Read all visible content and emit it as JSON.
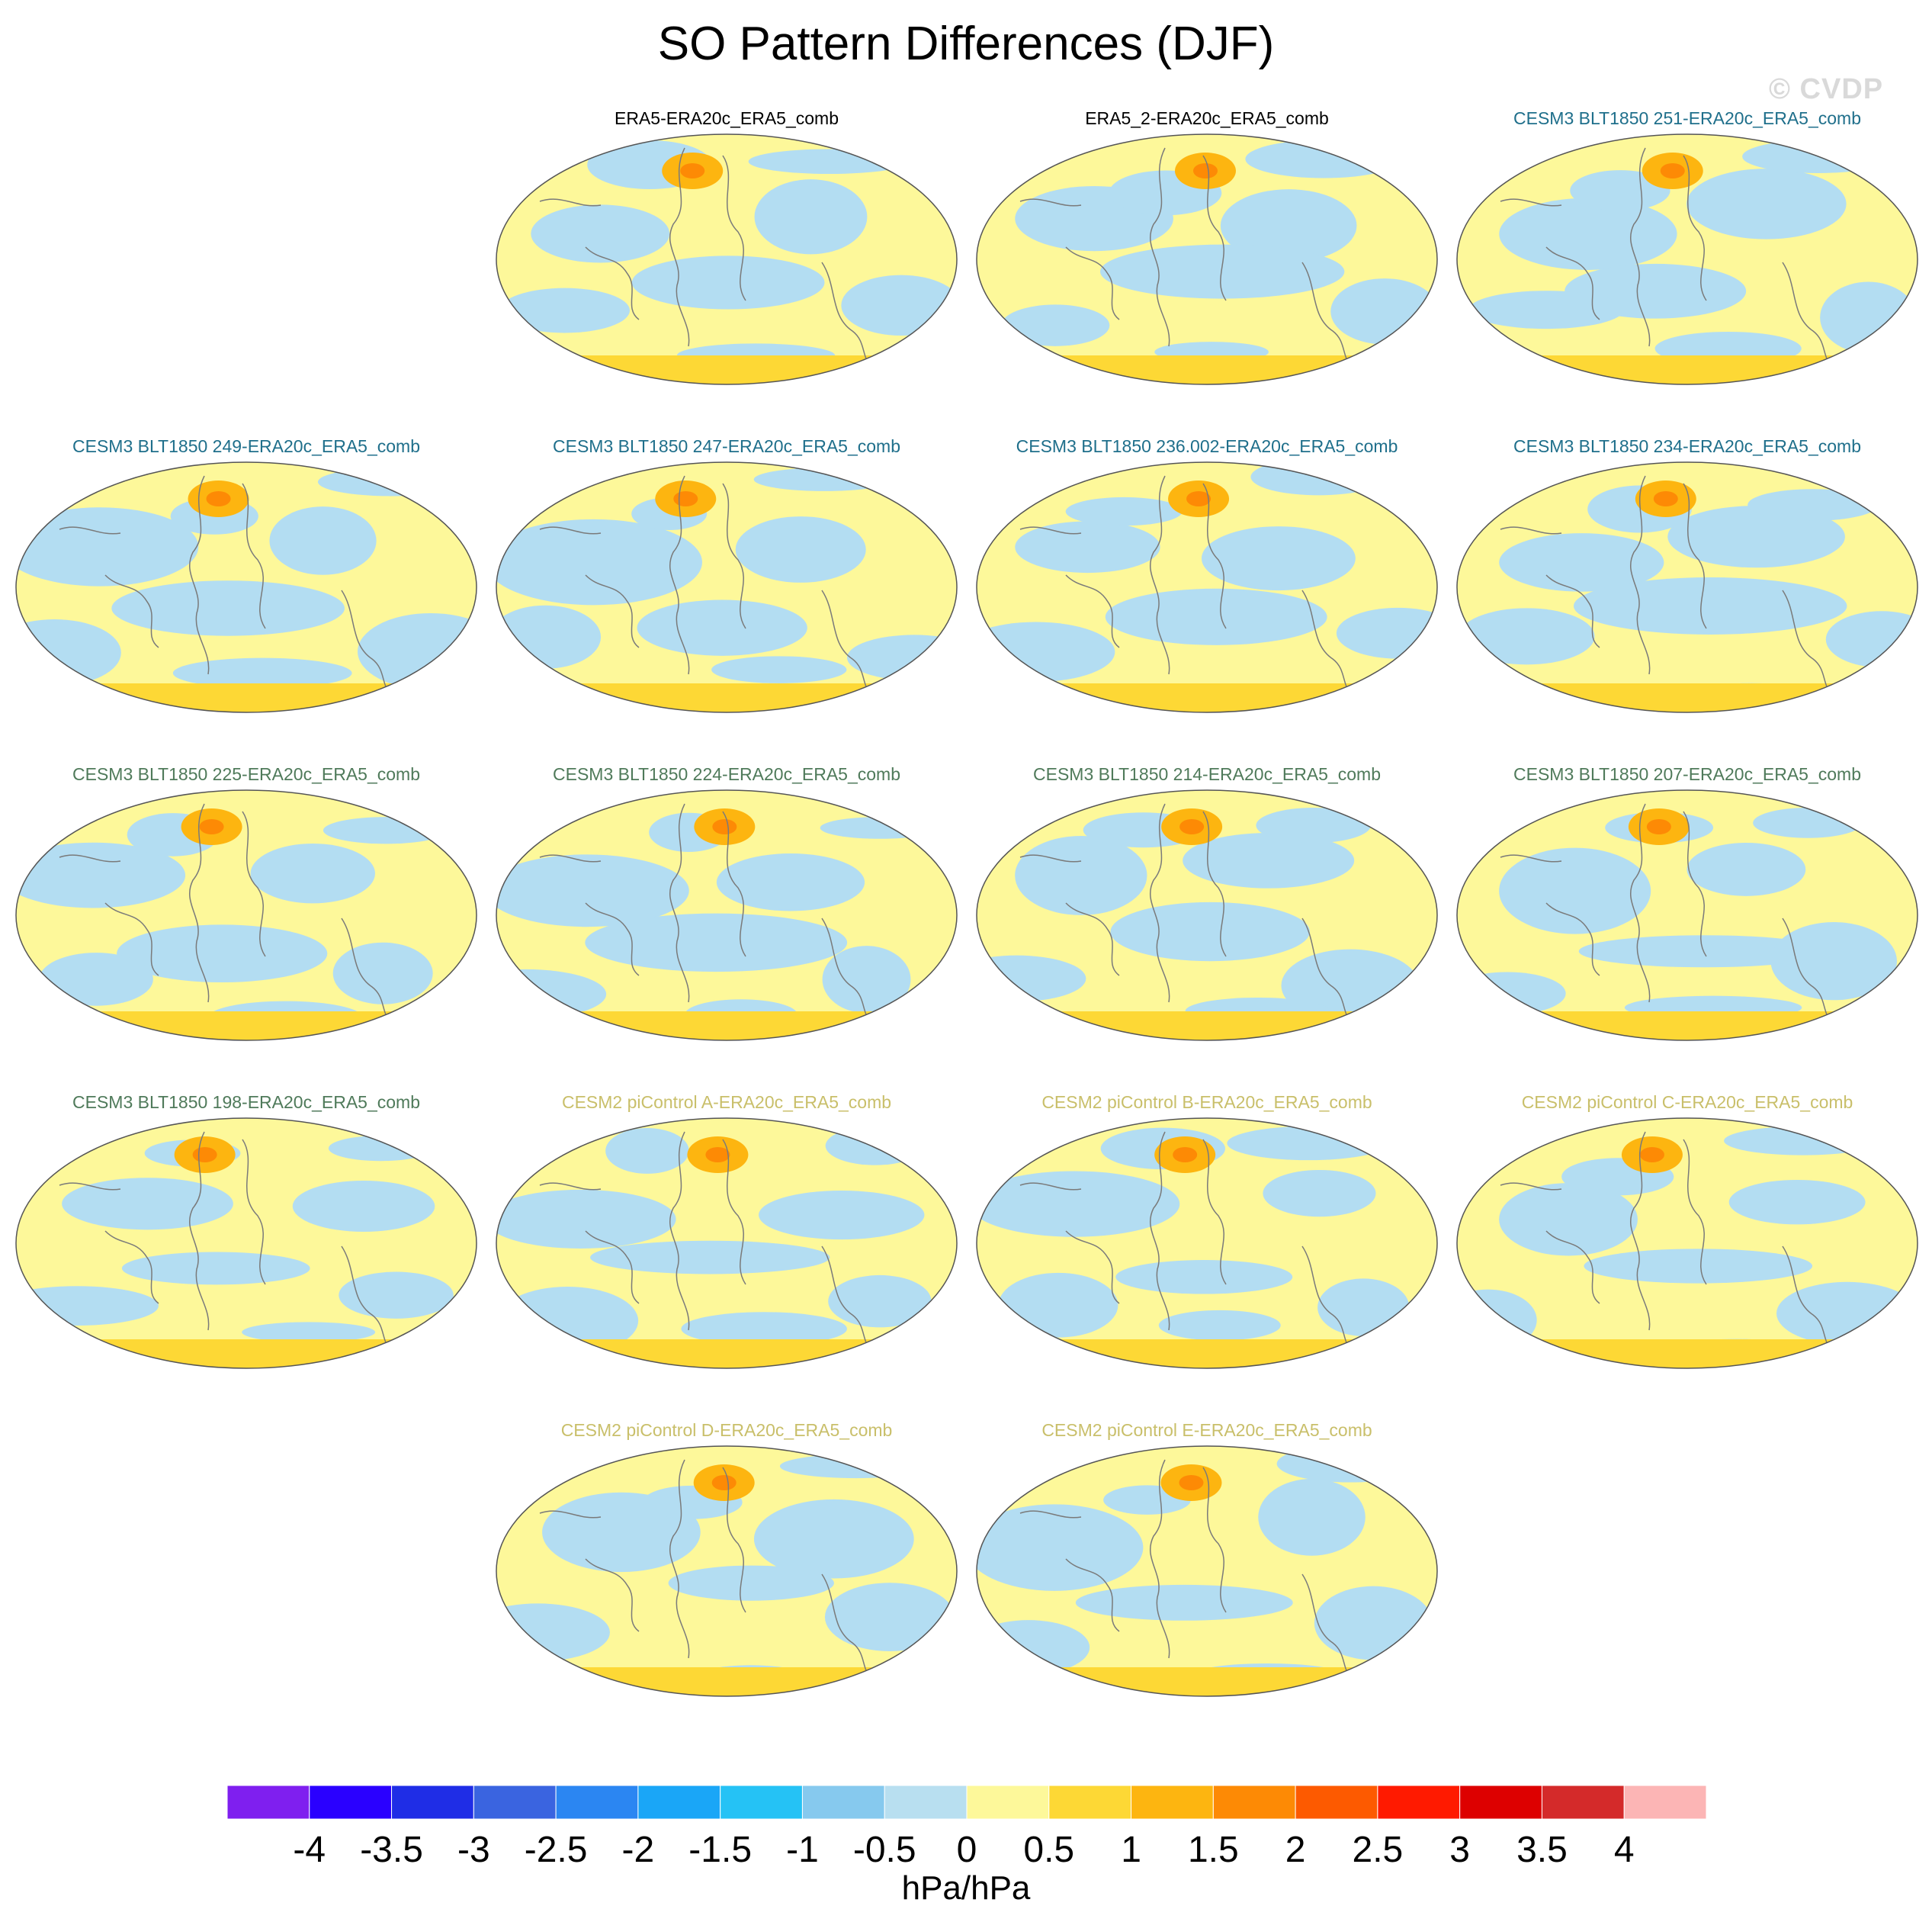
{
  "title": "SO Pattern Differences (DJF)",
  "watermark": "© CVDP",
  "watermark_color": "#d9d9d9",
  "colors": {
    "obs_label": "#000000",
    "cesm3_251_label": "#1f6f8b",
    "cesm3_label": "#4f7a5a",
    "cesm2_label": "#c9bf6a",
    "ocean_neg": "#b3ddf2",
    "ocean_pos": "#fdf89a",
    "coast": "#7a7a7a"
  },
  "panels": [
    {
      "label": "ERA5-ERA20c_ERA5_comb",
      "color_key": "obs_label"
    },
    {
      "label": "ERA5_2-ERA20c_ERA5_comb",
      "color_key": "obs_label"
    },
    {
      "label": "CESM3 BLT1850 251-ERA20c_ERA5_comb",
      "color_key": "cesm3_251_label"
    },
    {
      "label": "CESM3 BLT1850 249-ERA20c_ERA5_comb",
      "color_key": "cesm3_251_label"
    },
    {
      "label": "CESM3 BLT1850 247-ERA20c_ERA5_comb",
      "color_key": "cesm3_251_label"
    },
    {
      "label": "CESM3 BLT1850 236.002-ERA20c_ERA5_comb",
      "color_key": "cesm3_251_label"
    },
    {
      "label": "CESM3 BLT1850 234-ERA20c_ERA5_comb",
      "color_key": "cesm3_251_label"
    },
    {
      "label": "CESM3 BLT1850 225-ERA20c_ERA5_comb",
      "color_key": "cesm3_label"
    },
    {
      "label": "CESM3 BLT1850 224-ERA20c_ERA5_comb",
      "color_key": "cesm3_label"
    },
    {
      "label": "CESM3 BLT1850 214-ERA20c_ERA5_comb",
      "color_key": "cesm3_label"
    },
    {
      "label": "CESM3 BLT1850 207-ERA20c_ERA5_comb",
      "color_key": "cesm3_label"
    },
    {
      "label": "CESM3 BLT1850 198-ERA20c_ERA5_comb",
      "color_key": "cesm3_label"
    },
    {
      "label": "CESM2 piControl A-ERA20c_ERA5_comb",
      "color_key": "cesm2_label"
    },
    {
      "label": "CESM2 piControl B-ERA20c_ERA5_comb",
      "color_key": "cesm2_label"
    },
    {
      "label": "CESM2 piControl C-ERA20c_ERA5_comb",
      "color_key": "cesm2_label"
    },
    {
      "label": "CESM2 piControl D-ERA20c_ERA5_comb",
      "color_key": "cesm2_label"
    },
    {
      "label": "CESM2 piControl E-ERA20c_ERA5_comb",
      "color_key": "cesm2_label"
    }
  ],
  "colorbar": {
    "levels": [
      "-4",
      "-3.5",
      "-3",
      "-2.5",
      "-2",
      "-1.5",
      "-1",
      "-0.5",
      "0",
      "0.5",
      "1",
      "1.5",
      "2",
      "2.5",
      "3",
      "3.5",
      "4"
    ],
    "colors": [
      "#7f1fef",
      "#2a00ff",
      "#1f2de6",
      "#3a64e0",
      "#2b86f2",
      "#1aa6f7",
      "#25c2f5",
      "#86c9ee",
      "#b8dff0",
      "#fdf89a",
      "#fdd835",
      "#fdb510",
      "#fd8a05",
      "#fd5a00",
      "#ff1a00",
      "#dd0000",
      "#d42a2a",
      "#fcb5b5"
    ],
    "units": "hPa/hPa"
  }
}
